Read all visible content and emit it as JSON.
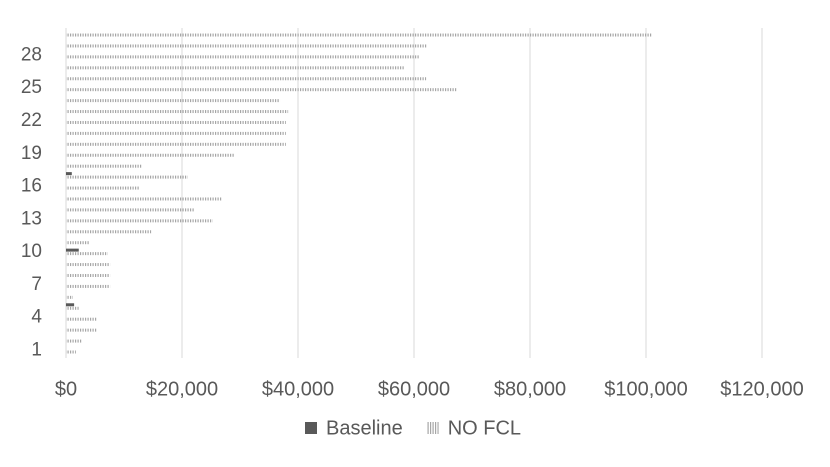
{
  "chart_data": {
    "type": "hbar",
    "categories": [
      "1",
      null,
      null,
      "4",
      null,
      null,
      "7",
      null,
      null,
      "10",
      null,
      null,
      "13",
      null,
      null,
      "16",
      null,
      null,
      "19",
      null,
      null,
      "22",
      null,
      null,
      "25",
      null,
      null,
      "28",
      null,
      null
    ],
    "series": [
      {
        "name": "Baseline",
        "color": "#595959",
        "pattern": "solid",
        "values": [
          0,
          0,
          0,
          0,
          1400,
          0,
          0,
          0,
          0,
          2200,
          0,
          0,
          0,
          0,
          0,
          0,
          1000,
          0,
          0,
          0,
          0,
          0,
          0,
          0,
          0,
          0,
          0,
          0,
          0,
          0
        ]
      },
      {
        "name": "NO FCL",
        "color": "#a6a6a6",
        "pattern": "vertical-hatch",
        "values": [
          1700,
          2800,
          5300,
          5300,
          2200,
          1200,
          7600,
          7600,
          7600,
          7200,
          4100,
          14700,
          25300,
          22200,
          26900,
          12600,
          21000,
          13100,
          29100,
          37900,
          37900,
          37900,
          38300,
          36900,
          67400,
          62100,
          58400,
          60900,
          62200,
          101000
        ]
      }
    ],
    "xlim": [
      0,
      120000
    ],
    "xticks": [
      {
        "value": 0,
        "label": "$0"
      },
      {
        "value": 20000,
        "label": "$20,000"
      },
      {
        "value": 40000,
        "label": "$40,000"
      },
      {
        "value": 60000,
        "label": "$60,000"
      },
      {
        "value": 80000,
        "label": "$80,000"
      },
      {
        "value": 100000,
        "label": "$100,000"
      },
      {
        "value": 120000,
        "label": "$120,000"
      }
    ],
    "grid": true,
    "legend": "bottom"
  }
}
